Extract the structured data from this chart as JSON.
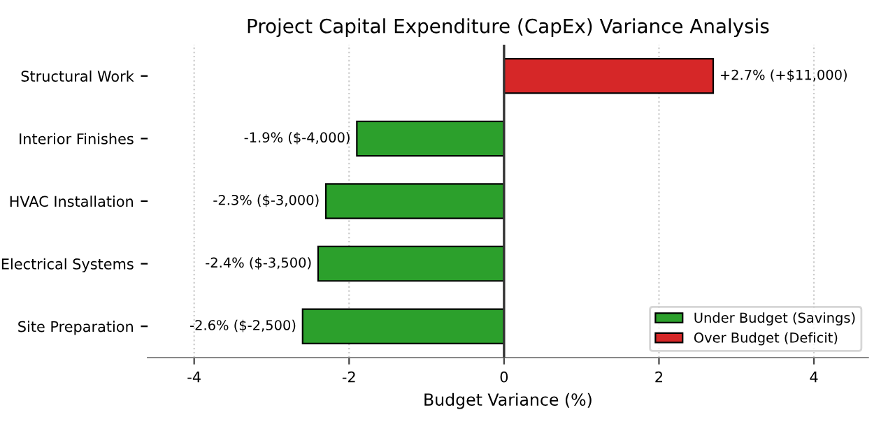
{
  "chart_data": {
    "type": "bar",
    "orientation": "horizontal",
    "stacked": true,
    "title": "Project Capital Expenditure (CapEx) Variance Analysis",
    "xlabel": "Budget Variance (%)",
    "categories": [
      "Structural Work",
      "Interior Finishes",
      "HVAC Installation",
      "Electrical Systems",
      "Site Preparation"
    ],
    "series": [
      {
        "name": "Under Budget (Savings)",
        "color": "#2ca02c",
        "values": [
          null,
          -1.9,
          -2.3,
          -2.4,
          -2.6
        ],
        "value_labels": [
          null,
          "-1.9% ($-4,000)",
          "-2.3% ($-3,000)",
          "-2.4% ($-3,500)",
          "-2.6% ($-2,500)"
        ]
      },
      {
        "name": "Over Budget (Deficit)",
        "color": "#d62728",
        "values": [
          2.7,
          null,
          null,
          null,
          null
        ],
        "value_labels": [
          "+2.7% (+$11,000)",
          null,
          null,
          null,
          null
        ]
      }
    ],
    "xlim": [
      -4.6,
      4.7
    ],
    "xticks": [
      -4,
      -2,
      0,
      2,
      4
    ],
    "ref_lines": [
      {
        "axis": "x",
        "value": 0,
        "color": "#333333"
      }
    ],
    "grid": "x",
    "legend": "bottom right"
  }
}
